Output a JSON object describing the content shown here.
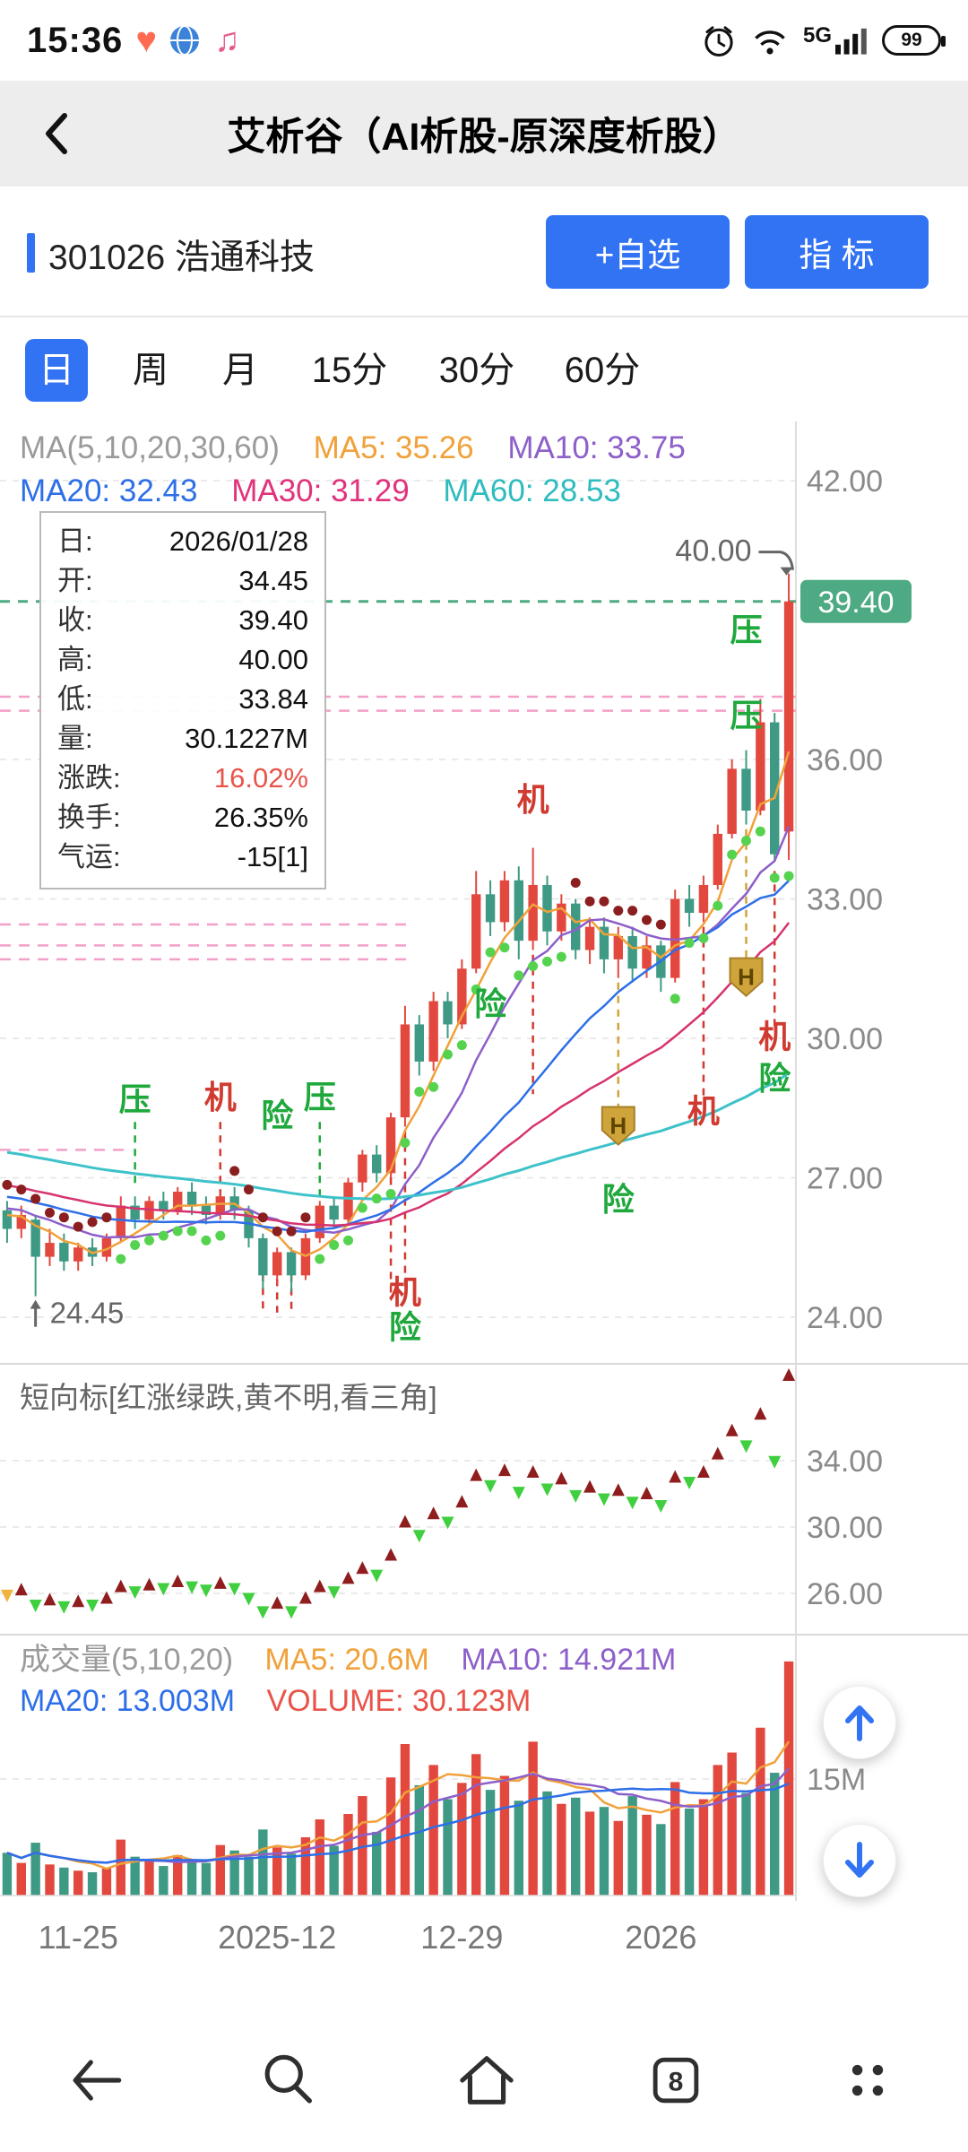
{
  "status_bar": {
    "time": "15:36",
    "network": "5G",
    "battery": "99"
  },
  "header": {
    "title": "艾析谷（AI析股-原深度析股）"
  },
  "stock_bar": {
    "title": "301026 浩通科技",
    "watchlist_button": "+自选",
    "indicator_button": "指 标"
  },
  "period_tabs": {
    "items": [
      "日",
      "周",
      "月",
      "15分",
      "30分",
      "60分"
    ],
    "active": "日"
  },
  "main_chart": {
    "ma_header_line1": {
      "title": "MA(5,10,20,30,60)",
      "ma5": "MA5: 35.26",
      "ma10": "MA10: 33.75"
    },
    "ma_header_line2": {
      "ma20": "MA20: 32.43",
      "ma30": "MA30: 31.29",
      "ma60": "MA60: 28.53"
    },
    "tooltip_rows": [
      {
        "label": "日:",
        "value": "2026/01/28"
      },
      {
        "label": "开:",
        "value": "34.45"
      },
      {
        "label": "收:",
        "value": "39.40"
      },
      {
        "label": "高:",
        "value": "40.00"
      },
      {
        "label": "低:",
        "value": "33.84"
      },
      {
        "label": "量:",
        "value": "30.1227M"
      },
      {
        "label": "涨跌:",
        "value": "16.02%",
        "color": "#e8544a"
      },
      {
        "label": "换手:",
        "value": "26.35%"
      },
      {
        "label": "气运:",
        "value": "-15[1]"
      }
    ]
  },
  "indicator_panel": {
    "label": "短向标[红涨绿跌,黄不明,看三角]"
  },
  "volume_panel": {
    "line1": {
      "title": "成交量(5,10,20)",
      "ma5": "MA5: 20.6M",
      "ma10": "MA10: 14.921M"
    },
    "line2": {
      "ma20": "MA20: 13.003M",
      "volume": "VOLUME: 30.123M"
    }
  },
  "nav_bar": {
    "tab_count": "8"
  },
  "palette": {
    "up": "#e2483e",
    "down": "#3e9a84",
    "ma5": "#f0a13a",
    "ma10": "#8d5fc9",
    "ma20": "#2e6fe8",
    "ma30": "#d6336f",
    "ma60": "#3ec2c9",
    "dot_up": "#55d34f",
    "dot_down": "#8b1e1e",
    "gold": "#cfa43b",
    "pink": "#f2a0c8",
    "price_line": "#4daa82",
    "label_red": "#d03a30",
    "label_green": "#1fa83c",
    "tri_up": "#8f1d1d",
    "tri_down": "#3fcf3f",
    "tri_flat": "#f0b43c",
    "accent_blue": "#3273f4"
  },
  "chart_data": {
    "type": "candlestick",
    "title": "301026 浩通科技 日K",
    "axis": {
      "max": 42.0,
      "min": 24.0,
      "ticks": [
        42.0,
        36.0,
        33.0,
        30.0,
        27.0,
        24.0
      ]
    },
    "indicator_axis": {
      "ticks": [
        34.0,
        30.0,
        26.0
      ]
    },
    "volume_axis": {
      "ticks": [
        {
          "v": 15,
          "label": "15M"
        }
      ]
    },
    "x_ticks": [
      {
        "i": 5,
        "label": "11-25"
      },
      {
        "i": 19,
        "label": "2025-12"
      },
      {
        "i": 32,
        "label": "12-29"
      },
      {
        "i": 46,
        "label": "2026"
      }
    ],
    "candles": [
      [
        26.3,
        26.5,
        25.6,
        25.9,
        5.5
      ],
      [
        25.9,
        26.4,
        25.7,
        26.2,
        4.2
      ],
      [
        26.1,
        26.2,
        24.45,
        25.3,
        6.8
      ],
      [
        25.3,
        25.9,
        25.1,
        25.6,
        4.0
      ],
      [
        25.6,
        25.8,
        25.0,
        25.2,
        3.6
      ],
      [
        25.2,
        25.6,
        25.0,
        25.5,
        3.2
      ],
      [
        25.5,
        25.7,
        25.1,
        25.3,
        3.0
      ],
      [
        25.3,
        25.8,
        25.2,
        25.7,
        3.5
      ],
      [
        25.7,
        26.6,
        25.6,
        26.4,
        7.2
      ],
      [
        26.4,
        26.6,
        25.9,
        26.1,
        5.0
      ],
      [
        26.1,
        26.6,
        26.0,
        26.5,
        4.4
      ],
      [
        26.5,
        26.7,
        26.1,
        26.3,
        3.8
      ],
      [
        26.3,
        26.8,
        26.2,
        26.7,
        5.2
      ],
      [
        26.7,
        26.9,
        26.2,
        26.4,
        4.6
      ],
      [
        26.4,
        26.6,
        26.0,
        26.2,
        4.2
      ],
      [
        26.2,
        26.7,
        26.1,
        26.6,
        6.5
      ],
      [
        26.6,
        26.8,
        26.1,
        26.3,
        5.8
      ],
      [
        26.3,
        26.4,
        25.5,
        25.7,
        5.0
      ],
      [
        25.7,
        25.8,
        24.6,
        24.9,
        8.5
      ],
      [
        24.9,
        25.5,
        24.7,
        25.4,
        6.2
      ],
      [
        25.4,
        25.5,
        24.55,
        24.9,
        5.4
      ],
      [
        24.9,
        25.8,
        24.8,
        25.7,
        7.5
      ],
      [
        25.7,
        26.5,
        25.6,
        26.4,
        9.8
      ],
      [
        26.4,
        26.6,
        25.9,
        26.1,
        6.4
      ],
      [
        26.1,
        27.0,
        26.0,
        26.9,
        10.5
      ],
      [
        26.9,
        27.6,
        26.7,
        27.5,
        12.8
      ],
      [
        27.5,
        27.7,
        26.9,
        27.1,
        8.2
      ],
      [
        27.1,
        28.4,
        27.0,
        28.3,
        15.2
      ],
      [
        28.3,
        30.7,
        28.1,
        30.3,
        19.5
      ],
      [
        30.3,
        30.5,
        29.2,
        29.5,
        14.2
      ],
      [
        29.5,
        31.0,
        29.3,
        30.8,
        16.8
      ],
      [
        30.8,
        31.0,
        30.0,
        30.3,
        12.4
      ],
      [
        30.3,
        31.7,
        30.2,
        31.5,
        14.5
      ],
      [
        31.5,
        33.6,
        31.4,
        33.1,
        18.2
      ],
      [
        33.1,
        33.4,
        32.2,
        32.5,
        13.6
      ],
      [
        32.5,
        33.6,
        32.3,
        33.4,
        15.4
      ],
      [
        33.4,
        33.7,
        31.7,
        32.1,
        12.2
      ],
      [
        32.1,
        34.1,
        31.9,
        33.3,
        19.8
      ],
      [
        33.3,
        33.5,
        32.0,
        32.3,
        13.4
      ],
      [
        32.3,
        33.1,
        32.1,
        32.9,
        11.8
      ],
      [
        32.9,
        33.0,
        31.7,
        31.9,
        12.6
      ],
      [
        31.9,
        32.6,
        31.6,
        32.4,
        10.8
      ],
      [
        32.4,
        32.6,
        31.4,
        31.7,
        11.4
      ],
      [
        31.7,
        32.4,
        31.3,
        32.2,
        9.6
      ],
      [
        32.2,
        32.4,
        31.2,
        31.5,
        12.8
      ],
      [
        31.5,
        32.2,
        31.3,
        32.0,
        10.4
      ],
      [
        32.0,
        32.1,
        31.0,
        31.3,
        9.2
      ],
      [
        31.3,
        33.2,
        31.2,
        33.0,
        14.6
      ],
      [
        33.0,
        33.3,
        32.4,
        32.7,
        11.2
      ],
      [
        32.7,
        33.5,
        32.5,
        33.3,
        12.4
      ],
      [
        33.3,
        34.6,
        33.2,
        34.4,
        16.8
      ],
      [
        34.4,
        36.0,
        34.3,
        35.8,
        18.4
      ],
      [
        35.8,
        36.2,
        34.6,
        34.9,
        13.2
      ],
      [
        34.9,
        37.3,
        34.8,
        36.8,
        21.6
      ],
      [
        36.8,
        37.0,
        33.8,
        33.96,
        15.8
      ],
      [
        34.45,
        40.0,
        33.84,
        39.4,
        30.123
      ]
    ],
    "annotations": {
      "price_line": {
        "value": 39.4,
        "label": "39.40"
      },
      "high_label": {
        "text": "40.00",
        "i": 52,
        "price": 40.0
      },
      "low_label": {
        "text": "24.45",
        "i": 2,
        "price": 24.45
      },
      "pink_lines": [
        {
          "price": 37.35,
          "frac": 1.0
        },
        {
          "price": 37.05,
          "frac": 1.0
        },
        {
          "price": 32.45,
          "frac": 0.52
        },
        {
          "price": 32.0,
          "frac": 0.52
        },
        {
          "price": 31.7,
          "frac": 0.52
        },
        {
          "price": 27.6,
          "frac": 0.16
        }
      ],
      "labels": [
        {
          "i": 9,
          "p": 28.45,
          "t": "压",
          "c": "g"
        },
        {
          "i": 15,
          "p": 28.5,
          "t": "机",
          "c": "r"
        },
        {
          "i": 19,
          "p": 28.1,
          "t": "险",
          "c": "g"
        },
        {
          "i": 22,
          "p": 28.5,
          "t": "压",
          "c": "g"
        },
        {
          "i": 28,
          "p": 24.3,
          "t": "机",
          "c": "r"
        },
        {
          "i": 28,
          "p": 23.55,
          "t": "险",
          "c": "g"
        },
        {
          "i": 34,
          "p": 30.5,
          "t": "险",
          "c": "g"
        },
        {
          "i": 37,
          "p": 34.9,
          "t": "机",
          "c": "r"
        },
        {
          "i": 43,
          "p": 26.3,
          "t": "险",
          "c": "g"
        },
        {
          "i": 49,
          "p": 28.2,
          "t": "机",
          "c": "r"
        },
        {
          "i": 52,
          "p": 38.55,
          "t": "压",
          "c": "g"
        },
        {
          "i": 52,
          "p": 36.7,
          "t": "压",
          "c": "g"
        },
        {
          "i": 54,
          "p": 29.8,
          "t": "机",
          "c": "r"
        },
        {
          "i": 54,
          "p": 28.9,
          "t": "险",
          "c": "g"
        }
      ],
      "h_markers": [
        {
          "i": 43,
          "p": 28.1,
          "text": "H"
        },
        {
          "i": 52,
          "p": 31.3,
          "text": "H"
        }
      ],
      "vlines": [
        {
          "i": 9,
          "p1": 28.2,
          "p2": 26.8,
          "c": "g"
        },
        {
          "i": 15,
          "p1": 28.2,
          "p2": 26.4,
          "c": "r"
        },
        {
          "i": 18,
          "p1": 25.5,
          "p2": 24.1,
          "c": "r"
        },
        {
          "i": 19,
          "p1": 25.4,
          "p2": 24.1,
          "c": "r"
        },
        {
          "i": 20,
          "p1": 25.2,
          "p2": 24.1,
          "c": "r"
        },
        {
          "i": 22,
          "p1": 28.2,
          "p2": 26.5,
          "c": "g"
        },
        {
          "i": 27,
          "p1": 27.0,
          "p2": 24.5,
          "c": "r"
        },
        {
          "i": 28,
          "p1": 28.0,
          "p2": 24.5,
          "c": "r"
        },
        {
          "i": 37,
          "p1": 31.8,
          "p2": 28.8,
          "c": "r"
        },
        {
          "i": 43,
          "p1": 31.2,
          "p2": 28.5,
          "c": "y"
        },
        {
          "i": 49,
          "p1": 32.4,
          "p2": 28.7,
          "c": "r"
        },
        {
          "i": 52,
          "p1": 34.5,
          "p2": 31.6,
          "c": "y"
        },
        {
          "i": 54,
          "p1": 33.6,
          "p2": 30.2,
          "c": "r"
        }
      ]
    }
  }
}
